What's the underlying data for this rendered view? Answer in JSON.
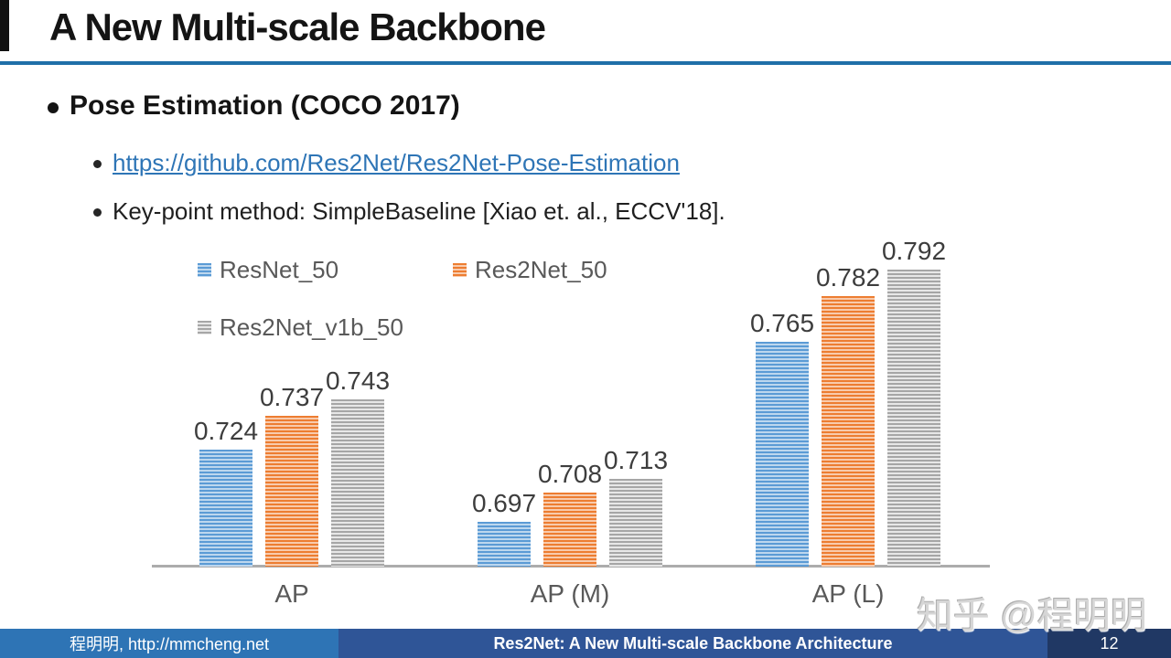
{
  "slide": {
    "title": "A New Multi-scale Backbone",
    "bullet1": "Pose Estimation (COCO 2017)",
    "link": "https://github.com/Res2Net/Res2Net-Pose-Estimation",
    "bullet2": "Key-point method: SimpleBaseline [Xiao et. al., ECCV'18].",
    "watermark": "知乎 @程明明"
  },
  "footer": {
    "left": "程明明, http://mmcheng.net",
    "center": "Res2Net: A New Multi-scale Backbone Architecture",
    "page": "12"
  },
  "colors": {
    "title_rule": "#1F6FA8",
    "link": "#2E75B6",
    "footer_left_bg": "#2E74B5",
    "footer_center_bg": "#2F5597",
    "footer_right_bg": "#203864",
    "legend_text": "#595959",
    "axis_line": "#ACACAC"
  },
  "chart_data": {
    "type": "bar",
    "categories": [
      "AP",
      "AP (M)",
      "AP (L)"
    ],
    "series": [
      {
        "name": "ResNet_50",
        "color": "#5B9BD5",
        "stripe": "#BDD7EE",
        "values": [
          0.724,
          0.697,
          0.765
        ]
      },
      {
        "name": "Res2Net_50",
        "color": "#ED7D31",
        "stripe": "#F8CBAD",
        "values": [
          0.737,
          0.708,
          0.782
        ]
      },
      {
        "name": "Res2Net_v1b_50",
        "color": "#A6A6A6",
        "stripe": "#E7E7E7",
        "values": [
          0.743,
          0.713,
          0.792
        ]
      }
    ],
    "value_labels": true,
    "value_format_decimals": 3,
    "ylim": [
      0.68,
      0.8
    ],
    "gridlines": false,
    "y_axis_visible": false,
    "legend_position": "top-left",
    "title": "",
    "xlabel": "",
    "ylabel": ""
  }
}
